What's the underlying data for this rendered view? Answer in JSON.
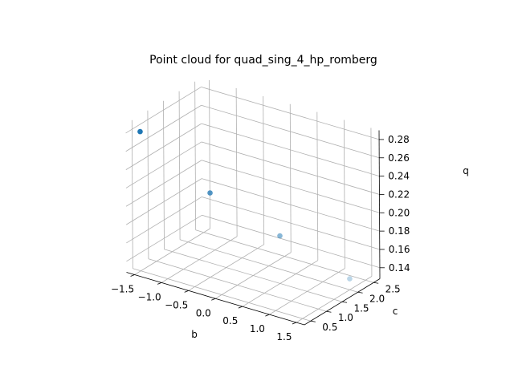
{
  "chart_data": {
    "type": "scatter",
    "projection": "3d",
    "title": "Point cloud for quad_sing_4_hp_romberg",
    "xlabel": "b",
    "ylabel": "c",
    "zlabel": "q",
    "xlim": [
      -1.65,
      1.65
    ],
    "ylim": [
      0.3,
      2.7
    ],
    "zlim": [
      0.128,
      0.29
    ],
    "xticks": [
      -1.5,
      -1.0,
      -0.5,
      0.0,
      0.5,
      1.0,
      1.5
    ],
    "xtick_labels": [
      "−1.5",
      "−1.0",
      "−0.5",
      "0.0",
      "0.5",
      "1.0",
      "1.5"
    ],
    "yticks": [
      0.5,
      1.0,
      1.5,
      2.0,
      2.5
    ],
    "ytick_labels": [
      "0.5",
      "1.0",
      "1.5",
      "2.0",
      "2.5"
    ],
    "zticks": [
      0.14,
      0.16,
      0.18,
      0.2,
      0.22,
      0.24,
      0.26,
      0.28
    ],
    "ztick_labels": [
      "0.14",
      "0.16",
      "0.18",
      "0.20",
      "0.22",
      "0.24",
      "0.26",
      "0.28"
    ],
    "grid": true,
    "color": "#1f77b4",
    "points": [
      {
        "x": -1.5,
        "y": 0.5,
        "z": 0.28
      },
      {
        "x": -0.5,
        "y": 1.0,
        "z": 0.22
      },
      {
        "x": 0.5,
        "y": 1.5,
        "z": 0.18
      },
      {
        "x": 1.5,
        "y": 2.0,
        "z": 0.14
      }
    ]
  }
}
